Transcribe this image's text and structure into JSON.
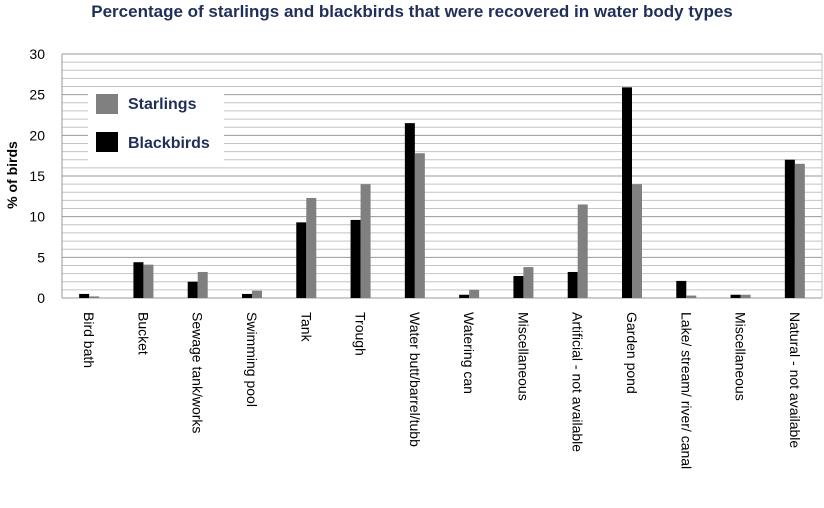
{
  "chart_data": {
    "type": "bar",
    "title": "Percentage of starlings and blackbirds that were recovered in water body types",
    "ylabel": "% of birds",
    "xlabel": "",
    "ylim": [
      0,
      30
    ],
    "yticks": [
      0,
      5,
      10,
      15,
      20,
      25,
      30
    ],
    "grid": true,
    "legend_position": "top-left",
    "categories": [
      "Bird bath",
      "Bucket",
      "Sewage tank/works",
      "Swimming pool",
      "Tank",
      "Trough",
      "Water butt/barrel/tubb",
      "Watering can",
      "Miscellaneous",
      "Artificial - not available",
      "Garden pond",
      "Lake/ stream/ river/ canal",
      "Miscellaneous",
      "Natural - not available"
    ],
    "series": [
      {
        "name": "Blackbirds",
        "color": "#000000",
        "values": [
          0.5,
          4.4,
          2.0,
          0.5,
          9.3,
          9.6,
          21.5,
          0.4,
          2.7,
          3.2,
          25.9,
          2.1,
          0.4,
          17.0
        ]
      },
      {
        "name": "Starlings",
        "color": "#808080",
        "values": [
          0.2,
          4.1,
          3.2,
          0.9,
          12.3,
          14.0,
          17.8,
          1.0,
          3.8,
          11.5,
          14.0,
          0.3,
          0.4,
          16.5
        ]
      }
    ]
  }
}
